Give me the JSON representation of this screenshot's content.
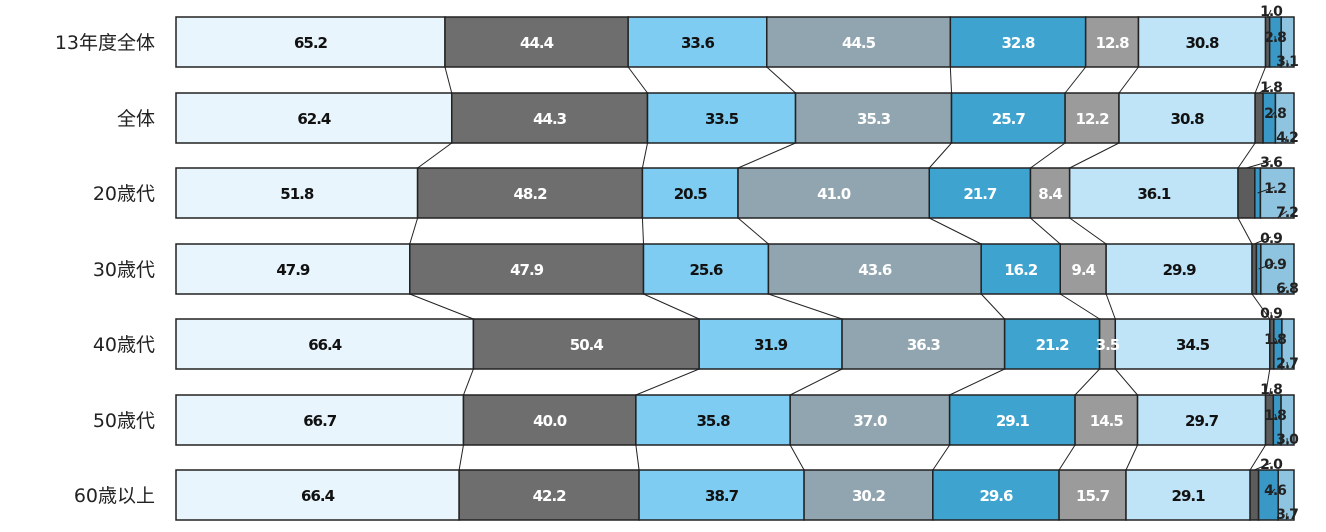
{
  "chart_data": {
    "type": "bar",
    "orientation": "horizontal",
    "stacked": true,
    "categories": [
      "13年度全体",
      "全体",
      "20歳代",
      "30歳代",
      "40歳代",
      "50歳代",
      "60歳以上"
    ],
    "series": [
      {
        "values": [
          65.2,
          62.4,
          51.8,
          47.9,
          66.4,
          66.7,
          66.4
        ],
        "color": "#e8f5fc"
      },
      {
        "values": [
          44.4,
          44.3,
          48.2,
          47.9,
          50.4,
          40.0,
          42.2
        ],
        "color": "#6e6e6e"
      },
      {
        "values": [
          33.6,
          33.5,
          20.5,
          25.6,
          31.9,
          35.8,
          38.7
        ],
        "color": "#7fccf2"
      },
      {
        "values": [
          44.5,
          35.3,
          41.0,
          43.6,
          36.3,
          37.0,
          30.2
        ],
        "color": "#91a5b0"
      },
      {
        "values": [
          32.8,
          25.7,
          21.7,
          16.2,
          21.2,
          29.1,
          29.6
        ],
        "color": "#3ea4cf"
      },
      {
        "values": [
          12.8,
          12.2,
          8.4,
          9.4,
          3.5,
          14.5,
          15.7
        ],
        "color": "#9b9b9b"
      },
      {
        "values": [
          30.8,
          30.8,
          36.1,
          29.9,
          34.5,
          29.7,
          29.1
        ],
        "color": "#bfe3f7"
      },
      {
        "values": [
          1.0,
          1.8,
          3.6,
          0.9,
          0.9,
          1.8,
          2.0
        ],
        "color": "#5c5c5c"
      },
      {
        "values": [
          2.8,
          2.8,
          1.2,
          0.9,
          1.8,
          1.8,
          4.6
        ],
        "color": "#3a98c6"
      },
      {
        "values": [
          3.1,
          4.2,
          7.2,
          6.8,
          2.7,
          3.0,
          3.7
        ],
        "color": "#8ec4df"
      }
    ],
    "series_text_colors": [
      "#111111",
      "#ffffff",
      "#111111",
      "#ffffff",
      "#ffffff",
      "#ffffff",
      "#111111",
      "#111111",
      "#111111",
      "#111111"
    ],
    "connector_lines": true,
    "legend": "none",
    "grid": false
  }
}
